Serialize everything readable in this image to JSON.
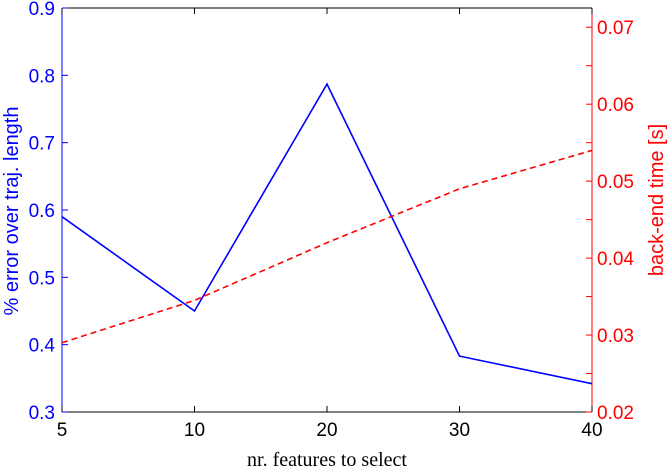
{
  "chart_data": {
    "type": "line",
    "categories": [
      "5",
      "10",
      "20",
      "30",
      "40"
    ],
    "xlabel": "nr. features to select",
    "ylabel_left": "% error over traj. length",
    "ylabel_right": "back-end time [s]",
    "ylim_left": [
      0.3,
      0.9
    ],
    "ylim_right": [
      0.02,
      0.0725
    ],
    "yticks_left": [
      "0.3",
      "0.4",
      "0.5",
      "0.6",
      "0.7",
      "0.8",
      "0.9"
    ],
    "yticks_right": [
      "0.02",
      "0.03",
      "0.04",
      "0.05",
      "0.06",
      "0.07"
    ],
    "grid": false,
    "series": [
      {
        "axis": "left",
        "style": "solid",
        "color": "#0000ff",
        "values": [
          0.59,
          0.45,
          0.787,
          0.383,
          0.342
        ]
      },
      {
        "axis": "right",
        "style": "dashed",
        "color": "#ff0000",
        "values": [
          0.029,
          0.0345,
          0.042,
          0.049,
          0.054
        ]
      }
    ]
  },
  "colors": {
    "left_axis": "#0000ff",
    "right_axis": "#ff0000",
    "box": "#000000"
  }
}
